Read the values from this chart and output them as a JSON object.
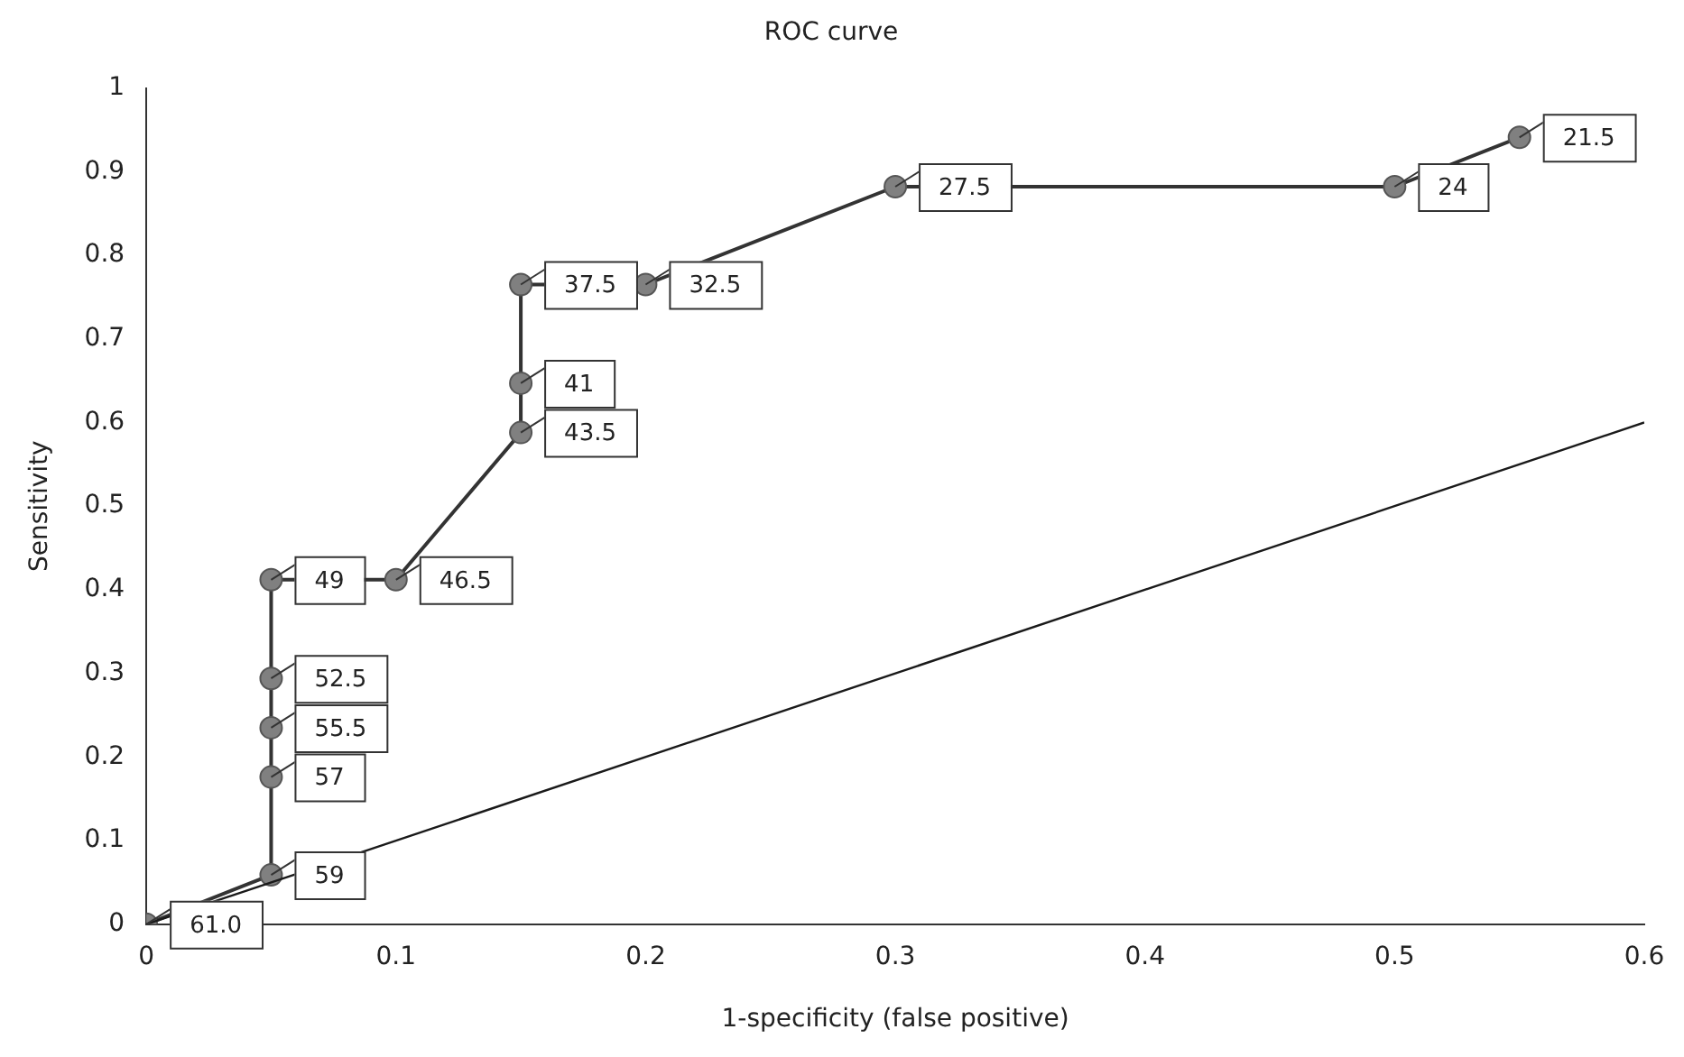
{
  "chart_data": {
    "type": "scatter",
    "title": "ROC curve",
    "xlabel": "1-specificity (false positive)",
    "ylabel": "Sensitivity",
    "xlim": [
      0,
      0.6
    ],
    "xticks": [
      0,
      0.1,
      0.2,
      0.3,
      0.4,
      0.5,
      0.6
    ],
    "ylim": [
      0,
      1
    ],
    "yticks": [
      0,
      0.1,
      0.2,
      0.3,
      0.4,
      0.5,
      0.6,
      0.7,
      0.8,
      0.9,
      1
    ],
    "grid": false,
    "legend": false,
    "series": [
      {
        "type": "line",
        "color": "#333333",
        "marker": "circle",
        "x": [
          0,
          0.05,
          0.05,
          0.05,
          0.05,
          0.05,
          0.1,
          0.15,
          0.15,
          0.15,
          0.2,
          0.3,
          0.5,
          0.55
        ],
        "values": [
          0,
          0.059,
          0.176,
          0.235,
          0.294,
          0.412,
          0.412,
          0.588,
          0.647,
          0.765,
          0.765,
          0.882,
          0.882,
          0.941
        ]
      },
      {
        "type": "line",
        "color": "#1a1a1a",
        "marker": "none",
        "x": [
          0,
          0.6
        ],
        "values": [
          0,
          0.6
        ]
      }
    ],
    "annotations": [
      {
        "text": "61.0",
        "x": 0,
        "y": 0
      },
      {
        "text": "59",
        "x": 0.05,
        "y": 0.059
      },
      {
        "text": "57",
        "x": 0.05,
        "y": 0.176
      },
      {
        "text": "55.5",
        "x": 0.05,
        "y": 0.235
      },
      {
        "text": "52.5",
        "x": 0.05,
        "y": 0.294
      },
      {
        "text": "49",
        "x": 0.05,
        "y": 0.412
      },
      {
        "text": "46.5",
        "x": 0.1,
        "y": 0.412
      },
      {
        "text": "43.5",
        "x": 0.15,
        "y": 0.588
      },
      {
        "text": "41",
        "x": 0.15,
        "y": 0.647
      },
      {
        "text": "37.5",
        "x": 0.15,
        "y": 0.765
      },
      {
        "text": "32.5",
        "x": 0.2,
        "y": 0.765
      },
      {
        "text": "27.5",
        "x": 0.3,
        "y": 0.882
      },
      {
        "text": "24",
        "x": 0.5,
        "y": 0.882
      },
      {
        "text": "21.5",
        "x": 0.55,
        "y": 0.941
      }
    ]
  }
}
